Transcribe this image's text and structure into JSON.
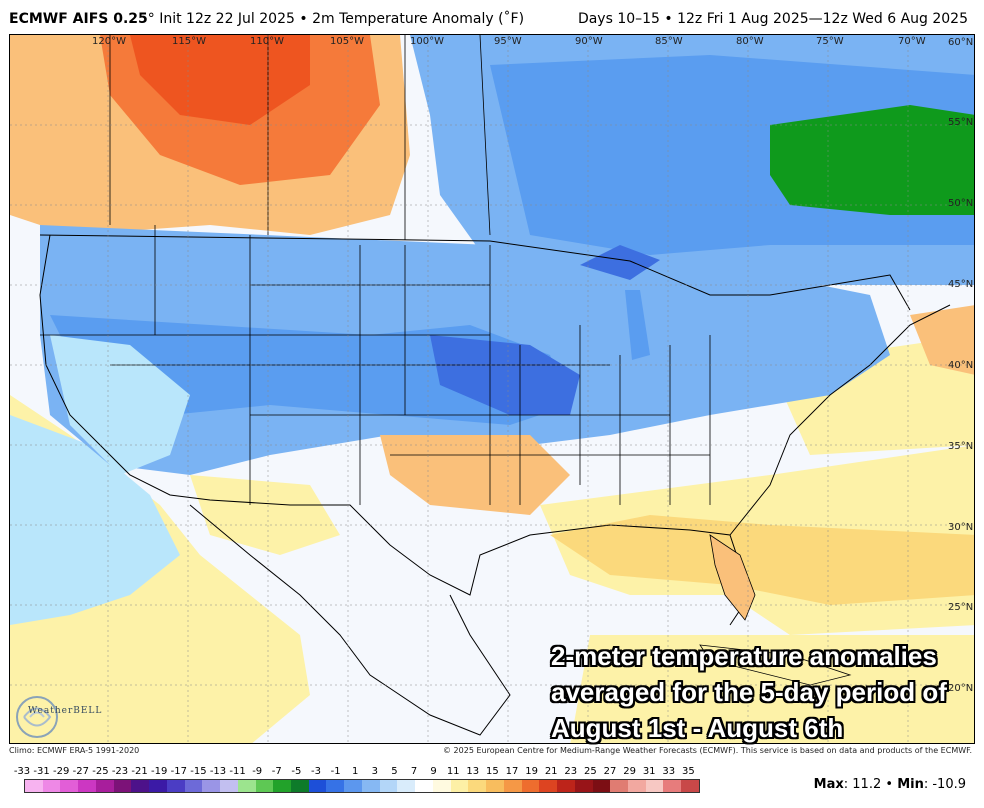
{
  "header": {
    "model": "ECMWF AIFS 0.25",
    "degree": "°",
    "init": "Init 12z 22 Jul 2025",
    "bullet": "•",
    "variable": "2m Temperature Anomaly (˚F)",
    "period": "Days 10–15 • 12z Fri 1 Aug 2025—12z Wed 6 Aug 2025"
  },
  "map": {
    "lon_labels": [
      "120°W",
      "115°W",
      "110°W",
      "105°W",
      "100°W",
      "95°W",
      "90°W",
      "85°W",
      "80°W",
      "75°W",
      "70°W"
    ],
    "lat_labels": [
      "60°N",
      "55°N",
      "50°N",
      "45°N",
      "40°N",
      "35°N",
      "30°N",
      "25°N",
      "20°N"
    ],
    "colors": {
      "ocean_neutral": "#f5f8fd",
      "land_neutral": "#ffffff",
      "light_blue": "#b9e6fb",
      "mid_blue": "#5a9df0",
      "deep_blue": "#3d6fe0",
      "blue": "#7ab3f3",
      "green": "#0f9a1c",
      "yellow": "#fdf2a8",
      "orange": "#fac07a",
      "deep_orange": "#f57a3a",
      "red_orange": "#ee5520",
      "borders": "#000000"
    }
  },
  "overlay_text": {
    "line1": "2-meter temperature anomalies",
    "line2": "averaged for the 5-day period of",
    "line3": "August 1st - August 6th"
  },
  "logo": {
    "text": "WeatherBELL",
    "icon": "weatherbell-swirl-icon"
  },
  "footer": {
    "climo": "Climo: ECMWF ERA-5 1991-2020",
    "copyright": "© 2025 European Centre for Medium-Range Weather Forecasts (ECMWF). This service is based on data and products of the ECMWF."
  },
  "colorbar": {
    "labels": [
      "-33",
      "-31",
      "-29",
      "-27",
      "-25",
      "-23",
      "-21",
      "-19",
      "-17",
      "-15",
      "-13",
      "-11",
      "-9",
      "-7",
      "-5",
      "-3",
      "-1",
      "1",
      "3",
      "5",
      "7",
      "9",
      "11",
      "13",
      "15",
      "17",
      "19",
      "21",
      "23",
      "25",
      "27",
      "29",
      "31",
      "33",
      "35"
    ],
    "colors": [
      "#f7b3f0",
      "#ee88e6",
      "#e25ed7",
      "#cc37c2",
      "#a81e9c",
      "#7c1278",
      "#4d128a",
      "#3b1aa6",
      "#4b3dc4",
      "#6d6ad8",
      "#9a95e6",
      "#c2bff0",
      "#9ce48e",
      "#5ec854",
      "#22a22a",
      "#0e7b2a",
      "#1d4fd8",
      "#3672e6",
      "#5c97ee",
      "#86b8f3",
      "#b3d6f8",
      "#d9ecfb",
      "#ffffff",
      "#fffae0",
      "#fdf0a6",
      "#fbd97c",
      "#f8bd5e",
      "#f59846",
      "#ee6d2e",
      "#dd4421",
      "#bd241a",
      "#981418",
      "#7c0e14",
      "#e07c72",
      "#f2a8a0",
      "#f7c8c3",
      "#e77c7c",
      "#c84848"
    ]
  },
  "stats": {
    "max_label": "Max",
    "max_value": "11.2",
    "sep": "•",
    "min_label": "Min",
    "min_value": "-10.9"
  }
}
